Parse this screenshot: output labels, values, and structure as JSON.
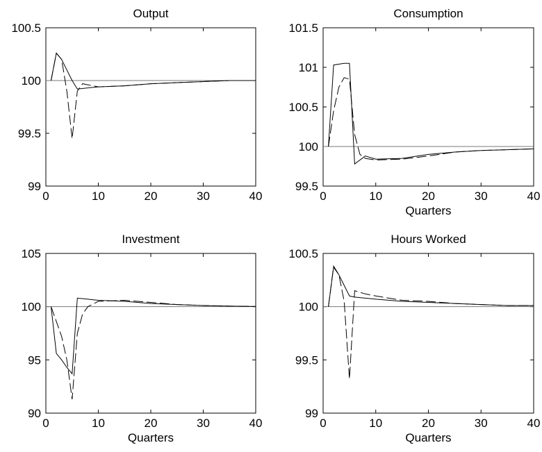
{
  "chart_data": [
    {
      "type": "line",
      "title": "Output",
      "xlabel": "",
      "ylabel": "",
      "xlim": [
        0,
        40
      ],
      "ylim": [
        99,
        100.5
      ],
      "xticks": [
        0,
        10,
        20,
        30,
        40
      ],
      "yticks": [
        99,
        99.5,
        100,
        100.5
      ],
      "ytick_labels": [
        "99",
        "99.5",
        "100",
        "100.5"
      ],
      "reference_line": 100,
      "series": [
        {
          "style": "solid",
          "x": [
            1,
            2,
            3,
            4,
            5,
            6,
            8,
            10,
            15,
            20,
            25,
            30,
            35,
            40
          ],
          "y": [
            100,
            100.26,
            100.2,
            100.1,
            100,
            99.92,
            99.93,
            99.94,
            99.95,
            99.97,
            99.98,
            99.99,
            100,
            100
          ]
        },
        {
          "style": "dashed",
          "x": [
            1,
            2,
            3,
            4,
            5,
            6,
            7,
            8,
            10,
            15,
            20,
            25,
            30,
            35,
            40
          ],
          "y": [
            100,
            100.26,
            100.2,
            99.9,
            99.45,
            99.9,
            99.97,
            99.96,
            99.94,
            99.95,
            99.97,
            99.98,
            99.99,
            100,
            100
          ]
        }
      ]
    },
    {
      "type": "line",
      "title": "Consumption",
      "xlabel": "Quarters",
      "ylabel": "",
      "xlim": [
        0,
        40
      ],
      "ylim": [
        99.5,
        101.5
      ],
      "xticks": [
        0,
        10,
        20,
        30,
        40
      ],
      "yticks": [
        99.5,
        100,
        100.5,
        101,
        101.5
      ],
      "ytick_labels": [
        "99.5",
        "100",
        "100.5",
        "101",
        "101.5"
      ],
      "reference_line": 100,
      "series": [
        {
          "style": "solid",
          "x": [
            1,
            2,
            3,
            4,
            5,
            6,
            8,
            10,
            15,
            20,
            25,
            30,
            35,
            40
          ],
          "y": [
            100,
            101.03,
            101.04,
            101.05,
            101.05,
            99.78,
            99.88,
            99.84,
            99.85,
            99.9,
            99.93,
            99.95,
            99.96,
            99.97
          ]
        },
        {
          "style": "dashed",
          "x": [
            1,
            2,
            3,
            4,
            5,
            6,
            7,
            8,
            10,
            15,
            20,
            25,
            30,
            35,
            40
          ],
          "y": [
            100,
            100.45,
            100.75,
            100.87,
            100.85,
            100.15,
            99.9,
            99.85,
            99.83,
            99.84,
            99.88,
            99.93,
            99.95,
            99.96,
            99.97
          ]
        }
      ]
    },
    {
      "type": "line",
      "title": "Investment",
      "xlabel": "Quarters",
      "ylabel": "",
      "xlim": [
        0,
        40
      ],
      "ylim": [
        90,
        105
      ],
      "xticks": [
        0,
        10,
        20,
        30,
        40
      ],
      "yticks": [
        90,
        95,
        100,
        105
      ],
      "ytick_labels": [
        "90",
        "95",
        "100",
        "105"
      ],
      "reference_line": 100,
      "series": [
        {
          "style": "solid",
          "x": [
            1,
            2,
            3,
            4,
            5,
            6,
            8,
            10,
            15,
            20,
            25,
            30,
            35,
            40
          ],
          "y": [
            100,
            95.6,
            95,
            94.3,
            93.7,
            100.8,
            100.7,
            100.6,
            100.5,
            100.3,
            100.2,
            100.1,
            100.05,
            100.02
          ]
        },
        {
          "style": "dashed",
          "x": [
            1,
            2,
            3,
            4,
            5,
            6,
            7,
            8,
            10,
            15,
            20,
            25,
            30,
            35,
            40
          ],
          "y": [
            100,
            98.6,
            97.2,
            95,
            91.3,
            97.5,
            99.3,
            100,
            100.5,
            100.6,
            100.4,
            100.2,
            100.1,
            100.05,
            100.02
          ]
        }
      ]
    },
    {
      "type": "line",
      "title": "Hours Worked",
      "xlabel": "Quarters",
      "ylabel": "",
      "xlim": [
        0,
        40
      ],
      "ylim": [
        99,
        100.5
      ],
      "xticks": [
        0,
        10,
        20,
        30,
        40
      ],
      "yticks": [
        99,
        99.5,
        100,
        100.5
      ],
      "ytick_labels": [
        "99",
        "99.5",
        "100",
        "100.5"
      ],
      "reference_line": 100,
      "series": [
        {
          "style": "solid",
          "x": [
            1,
            2,
            3,
            4,
            5,
            6,
            10,
            15,
            20,
            25,
            30,
            35,
            40
          ],
          "y": [
            100,
            100.37,
            100.3,
            100.2,
            100.1,
            100.09,
            100.07,
            100.05,
            100.04,
            100.03,
            100.02,
            100.01,
            100.01
          ]
        },
        {
          "style": "dashed",
          "x": [
            1,
            2,
            3,
            4,
            5,
            6,
            8,
            10,
            15,
            20,
            25,
            30,
            35,
            40
          ],
          "y": [
            100,
            100.38,
            100.3,
            100.05,
            99.32,
            100.15,
            100.12,
            100.1,
            100.06,
            100.05,
            100.03,
            100.02,
            100.01,
            100.01
          ]
        }
      ]
    }
  ]
}
